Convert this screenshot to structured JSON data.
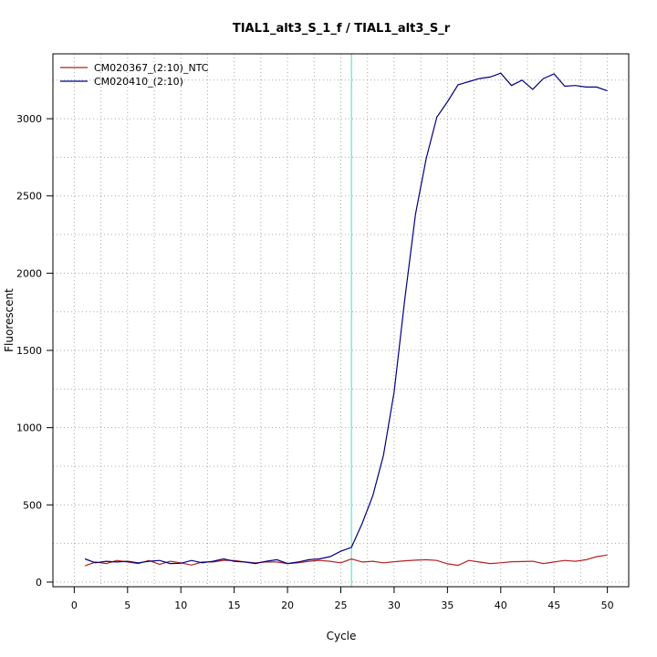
{
  "chart_data": {
    "type": "line",
    "title": "TIAL1_alt3_S_1_f / TIAL1_alt3_S_r",
    "xlabel": "Cycle",
    "ylabel": "Fluorescent",
    "xlim": [
      -2,
      52
    ],
    "ylim": [
      -30,
      3420
    ],
    "xticks": [
      0,
      5,
      10,
      15,
      20,
      25,
      30,
      35,
      40,
      45,
      50
    ],
    "yticks": [
      0,
      500,
      1000,
      1500,
      2000,
      2500,
      3000
    ],
    "grid": true,
    "legend_position": "top-left",
    "threshold_cycle": 26,
    "threshold_color": "#40e0d0",
    "x": [
      1,
      2,
      3,
      4,
      5,
      6,
      7,
      8,
      9,
      10,
      11,
      12,
      13,
      14,
      15,
      16,
      17,
      18,
      19,
      20,
      21,
      22,
      23,
      24,
      25,
      26,
      27,
      28,
      29,
      30,
      31,
      32,
      33,
      34,
      35,
      36,
      37,
      38,
      39,
      40,
      41,
      42,
      43,
      44,
      45,
      46,
      47,
      48,
      49,
      50
    ],
    "series": [
      {
        "name": "CM020367_(2:10)_NTC",
        "color": "#b22222",
        "values": [
          105,
          130,
          120,
          140,
          130,
          120,
          140,
          115,
          135,
          125,
          110,
          130,
          130,
          140,
          140,
          130,
          125,
          130,
          130,
          120,
          125,
          135,
          140,
          135,
          125,
          150,
          130,
          135,
          125,
          132,
          138,
          142,
          145,
          140,
          118,
          108,
          140,
          130,
          120,
          125,
          132,
          133,
          135,
          120,
          130,
          140,
          135,
          145,
          165,
          175
        ]
      },
      {
        "name": "CM020410_(2:10)",
        "color": "#000080",
        "values": [
          150,
          125,
          135,
          130,
          135,
          125,
          135,
          140,
          120,
          122,
          140,
          125,
          135,
          150,
          135,
          130,
          120,
          135,
          145,
          120,
          130,
          145,
          150,
          165,
          200,
          225,
          380,
          560,
          820,
          1230,
          1830,
          2380,
          2740,
          3010,
          3110,
          3220,
          3240,
          3260,
          3270,
          3295,
          3215,
          3250,
          3190,
          3260,
          3290,
          3210,
          3215,
          3205,
          3205,
          3180
        ]
      }
    ]
  }
}
